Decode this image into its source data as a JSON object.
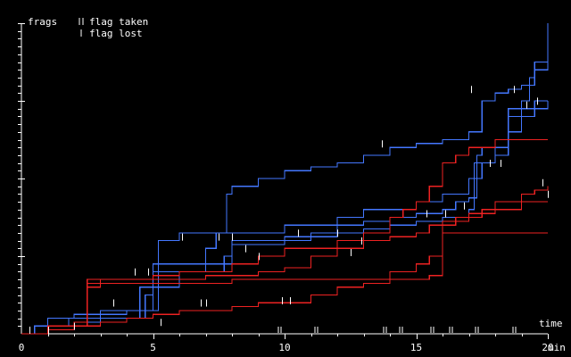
{
  "chart_data": {
    "type": "line",
    "ylabel": "frags",
    "xlabel": "time",
    "x_unit": "min",
    "xlim": [
      0,
      20
    ],
    "ylim": [
      0,
      40
    ],
    "x_ticks": [
      0,
      5,
      10,
      15,
      20
    ],
    "y_minor_every": 1,
    "y_major_every": 10,
    "legend": {
      "position": "top-left",
      "entries": [
        {
          "marker": "double-tick",
          "label": "flag taken"
        },
        {
          "marker": "single-tick",
          "label": "flag lost"
        }
      ]
    },
    "series_colors": {
      "blue": "#4477ff",
      "red": "#ee2222"
    },
    "series": [
      {
        "color": "blue",
        "points": [
          [
            0,
            0
          ],
          [
            0.5,
            1
          ],
          [
            1,
            1
          ],
          [
            1.8,
            2
          ],
          [
            2.5,
            2
          ],
          [
            3.5,
            2
          ],
          [
            4.5,
            3
          ],
          [
            5,
            3
          ],
          [
            5.2,
            12
          ],
          [
            6,
            13
          ],
          [
            7,
            13
          ],
          [
            7.8,
            13
          ],
          [
            8.5,
            13
          ],
          [
            9,
            13
          ],
          [
            10,
            14
          ],
          [
            11,
            14
          ],
          [
            12,
            15
          ],
          [
            13,
            16
          ],
          [
            14,
            16
          ],
          [
            15,
            17
          ],
          [
            15.5,
            17
          ],
          [
            16,
            18
          ],
          [
            16.5,
            18
          ],
          [
            17,
            20
          ],
          [
            17.5,
            22
          ],
          [
            18,
            24
          ],
          [
            18.5,
            29
          ],
          [
            19,
            30
          ],
          [
            19.3,
            33
          ],
          [
            19.5,
            34
          ],
          [
            20,
            35
          ]
        ]
      },
      {
        "color": "blue",
        "points": [
          [
            0,
            0
          ],
          [
            1,
            2
          ],
          [
            2,
            2.5
          ],
          [
            3,
            3
          ],
          [
            4,
            3
          ],
          [
            4.5,
            6
          ],
          [
            5,
            9
          ],
          [
            6,
            9
          ],
          [
            7,
            11
          ],
          [
            7.4,
            13
          ],
          [
            7.8,
            18
          ],
          [
            8,
            19
          ],
          [
            9,
            20
          ],
          [
            10,
            21
          ],
          [
            11,
            21.5
          ],
          [
            12,
            22
          ],
          [
            13,
            23
          ],
          [
            14,
            24
          ],
          [
            15,
            24.5
          ],
          [
            16,
            25
          ],
          [
            16.5,
            25
          ],
          [
            17,
            26
          ],
          [
            17.5,
            30
          ],
          [
            18,
            31
          ],
          [
            18.5,
            31.5
          ],
          [
            19,
            32
          ],
          [
            19.5,
            35
          ],
          [
            20,
            40
          ]
        ]
      },
      {
        "color": "blue",
        "points": [
          [
            0,
            0
          ],
          [
            1,
            0.5
          ],
          [
            2,
            1
          ],
          [
            3,
            2
          ],
          [
            4,
            2
          ],
          [
            4.7,
            5
          ],
          [
            5,
            8
          ],
          [
            6,
            8
          ],
          [
            7,
            8
          ],
          [
            7.7,
            9
          ],
          [
            8,
            11.5
          ],
          [
            9,
            11.5
          ],
          [
            10,
            12
          ],
          [
            11,
            12.5
          ],
          [
            12,
            13
          ],
          [
            13,
            13.5
          ],
          [
            14,
            14
          ],
          [
            15,
            14.5
          ],
          [
            16,
            15
          ],
          [
            16.5,
            15
          ],
          [
            17,
            16
          ],
          [
            17.2,
            22
          ],
          [
            18,
            23
          ],
          [
            18.5,
            28
          ],
          [
            19,
            29
          ],
          [
            19.5,
            30
          ],
          [
            20,
            30
          ]
        ]
      },
      {
        "color": "blue",
        "points": [
          [
            0,
            0
          ],
          [
            1,
            0.5
          ],
          [
            2,
            1.5
          ],
          [
            3,
            2.5
          ],
          [
            4,
            3
          ],
          [
            5,
            6
          ],
          [
            6,
            8
          ],
          [
            7,
            9
          ],
          [
            7.7,
            10
          ],
          [
            8,
            12
          ],
          [
            9,
            12
          ],
          [
            10,
            12.5
          ],
          [
            11,
            13
          ],
          [
            12,
            14
          ],
          [
            13,
            14.5
          ],
          [
            14,
            15
          ],
          [
            15,
            15.5
          ],
          [
            16,
            16
          ],
          [
            16.5,
            17
          ],
          [
            17,
            17.5
          ],
          [
            17.3,
            23
          ],
          [
            17.5,
            24
          ],
          [
            18,
            25
          ],
          [
            18.5,
            26
          ],
          [
            19,
            28
          ],
          [
            19.5,
            29
          ],
          [
            20,
            30
          ]
        ]
      },
      {
        "color": "red",
        "points": [
          [
            0,
            0
          ],
          [
            1,
            0.5
          ],
          [
            2,
            1
          ],
          [
            2.5,
            7
          ],
          [
            3,
            7
          ],
          [
            4,
            7
          ],
          [
            5,
            7.5
          ],
          [
            6,
            8
          ],
          [
            7,
            8
          ],
          [
            8,
            9
          ],
          [
            9,
            10
          ],
          [
            10,
            11
          ],
          [
            11,
            11
          ],
          [
            12,
            12
          ],
          [
            13,
            13
          ],
          [
            14,
            15
          ],
          [
            14.5,
            16
          ],
          [
            15,
            17
          ],
          [
            15.5,
            19
          ],
          [
            16,
            22
          ],
          [
            16.5,
            23
          ],
          [
            17,
            24
          ],
          [
            17.5,
            24
          ],
          [
            18,
            25
          ],
          [
            19,
            25
          ],
          [
            20,
            25
          ]
        ]
      },
      {
        "color": "red",
        "points": [
          [
            0,
            0
          ],
          [
            1,
            1
          ],
          [
            2,
            1.5
          ],
          [
            2.5,
            6
          ],
          [
            3,
            7
          ],
          [
            4,
            7
          ],
          [
            5,
            7
          ],
          [
            6,
            7
          ],
          [
            7,
            7.5
          ],
          [
            8,
            7.5
          ],
          [
            9,
            8
          ],
          [
            10,
            8.5
          ],
          [
            11,
            10
          ],
          [
            12,
            11
          ],
          [
            13,
            12
          ],
          [
            14,
            12.5
          ],
          [
            15,
            13
          ],
          [
            15.5,
            14
          ],
          [
            16,
            14.5
          ],
          [
            17,
            15
          ],
          [
            17.5,
            16
          ],
          [
            18,
            17
          ],
          [
            19,
            18
          ],
          [
            19.5,
            18.5
          ],
          [
            20,
            19
          ]
        ]
      },
      {
        "color": "red",
        "points": [
          [
            0,
            0
          ],
          [
            1,
            0.5
          ],
          [
            2,
            1
          ],
          [
            3,
            1.5
          ],
          [
            4,
            2
          ],
          [
            5,
            2.5
          ],
          [
            6,
            3
          ],
          [
            7,
            3
          ],
          [
            8,
            3.5
          ],
          [
            9,
            4
          ],
          [
            10,
            4
          ],
          [
            11,
            5
          ],
          [
            12,
            6
          ],
          [
            13,
            6.5
          ],
          [
            14,
            8
          ],
          [
            15,
            9
          ],
          [
            15.5,
            10
          ],
          [
            16,
            14
          ],
          [
            16.5,
            15
          ],
          [
            17,
            15.5
          ],
          [
            18,
            16
          ],
          [
            19,
            17
          ],
          [
            20,
            17
          ]
        ]
      },
      {
        "color": "red",
        "points": [
          [
            0,
            0
          ],
          [
            1,
            0.5
          ],
          [
            2,
            1
          ],
          [
            2.5,
            6.5
          ],
          [
            3,
            6.5
          ],
          [
            5,
            6.5
          ],
          [
            6,
            6.5
          ],
          [
            8,
            7
          ],
          [
            10,
            7
          ],
          [
            12,
            7
          ],
          [
            14,
            7
          ],
          [
            15.5,
            7.5
          ],
          [
            15.9,
            7.5
          ],
          [
            16,
            13
          ],
          [
            18,
            13
          ],
          [
            20,
            13
          ]
        ]
      }
    ],
    "flag_taken_x": [
      [
        16.3,
        18.7
      ],
      [
        15.6,
        17.3
      ],
      [
        11.2,
        14.4
      ],
      [
        9.8,
        13.8
      ]
    ],
    "flag_lost": [
      {
        "x": 17.1,
        "y": 31
      },
      {
        "x": 18.7,
        "y": 31
      },
      {
        "x": 13.7,
        "y": 24
      },
      {
        "x": 6.1,
        "y": 12
      },
      {
        "x": 7.5,
        "y": 12
      },
      {
        "x": 8.0,
        "y": 12
      },
      {
        "x": 8.5,
        "y": 10.5
      },
      {
        "x": 10.5,
        "y": 12.5
      },
      {
        "x": 12.0,
        "y": 12.5
      },
      {
        "x": 12.5,
        "y": 10
      },
      {
        "x": 15.4,
        "y": 15
      },
      {
        "x": 16.1,
        "y": 15
      },
      {
        "x": 16.8,
        "y": 16
      },
      {
        "x": 17.8,
        "y": 21.5
      },
      {
        "x": 18.2,
        "y": 21.5
      },
      {
        "x": 19.2,
        "y": 29
      },
      {
        "x": 19.6,
        "y": 29.5
      },
      {
        "x": 4.3,
        "y": 7.5
      },
      {
        "x": 4.8,
        "y": 7.5
      },
      {
        "x": 3.5,
        "y": 3.5
      },
      {
        "x": 5.3,
        "y": 1
      },
      {
        "x": 6.8,
        "y": 3.5
      },
      {
        "x": 7.0,
        "y": 3.5
      },
      {
        "x": 9.9,
        "y": 3.8
      },
      {
        "x": 10.2,
        "y": 3.8
      },
      {
        "x": 1.0,
        "y": 0
      },
      {
        "x": 2.0,
        "y": 0.5
      },
      {
        "x": 20.0,
        "y": 17.5
      },
      {
        "x": 19.8,
        "y": 19
      },
      {
        "x": 0.3,
        "y": 0
      },
      {
        "x": 12.9,
        "y": 11.5
      },
      {
        "x": 9.0,
        "y": 9.5
      }
    ]
  }
}
